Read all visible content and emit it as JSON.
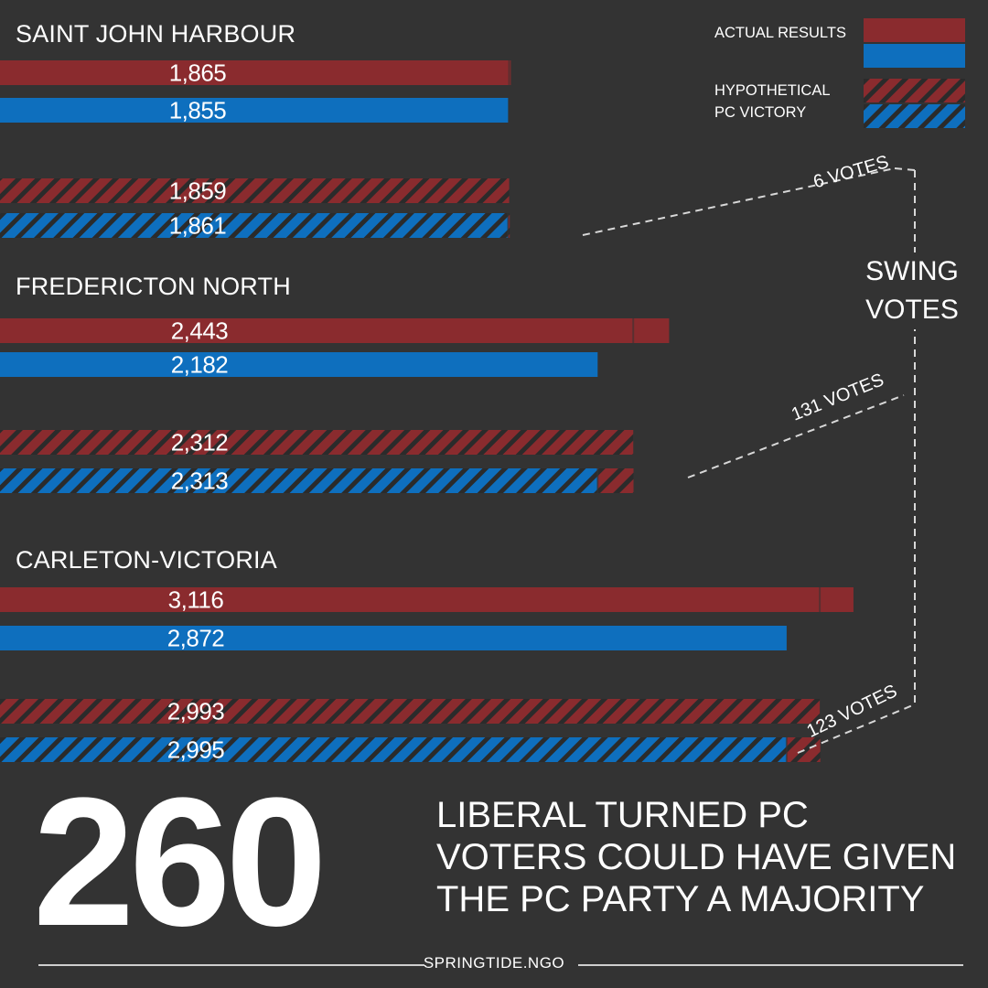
{
  "legend": {
    "actual_label": "ACTUAL RESULTS",
    "hypothetical_label_line1": "HYPOTHETICAL",
    "hypothetical_label_line2": "PC VICTORY"
  },
  "colors": {
    "background": "#333333",
    "liberal": "#8a2b2e",
    "pc": "#0e6fbe",
    "hatch_stripe": "#2b2b2b"
  },
  "swing": {
    "label_line1": "SWING",
    "label_line2": "VOTES"
  },
  "chart_data": {
    "type": "bar",
    "orientation": "horizontal",
    "series_meaning": {
      "red": "Liberal",
      "blue": "PC",
      "solid": "ACTUAL RESULTS",
      "hatched": "HYPOTHETICAL PC VICTORY"
    },
    "ridings": [
      {
        "name": "SAINT JOHN HARBOUR",
        "actual_liberal": 1865,
        "actual_pc": 1855,
        "hyp_liberal": 1859,
        "hyp_pc": 1861,
        "swing_label": "6 VOTES"
      },
      {
        "name": "FREDERICTON NORTH",
        "actual_liberal": 2443,
        "actual_pc": 2182,
        "hyp_liberal": 2312,
        "hyp_pc": 2313,
        "swing_label": "131 VOTES"
      },
      {
        "name": "CARLETON-VICTORIA",
        "actual_liberal": 3116,
        "actual_pc": 2872,
        "hyp_liberal": 2993,
        "hyp_pc": 2995,
        "swing_label": "123 VOTES"
      }
    ],
    "value_labels": [
      [
        "1,865",
        "1,855",
        "1,859",
        "1,861"
      ],
      [
        "2,443",
        "2,182",
        "2,312",
        "2,313"
      ],
      [
        "3,116",
        "2,872",
        "2,993",
        "2,995"
      ]
    ]
  },
  "headline": {
    "number": "260",
    "line1": "LIBERAL TURNED PC",
    "line2": "VOTERS COULD HAVE GIVEN",
    "line3": "THE PC PARTY A MAJORITY"
  },
  "footer": {
    "text": "SPRINGTIDE.NGO"
  }
}
